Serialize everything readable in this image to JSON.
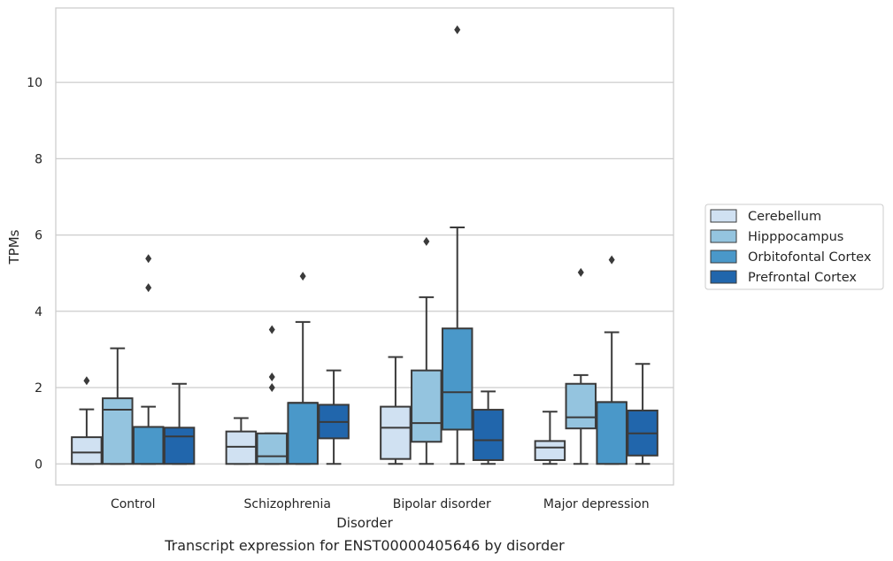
{
  "chart_data": {
    "type": "box",
    "caption": "Transcript expression for ENST00000405646 by disorder",
    "xlabel": "Disorder",
    "ylabel": "TPMs",
    "ylim": [
      -0.55,
      11.95
    ],
    "yticks": [
      0,
      2,
      4,
      6,
      8,
      10
    ],
    "grid": "horizontal",
    "legend_position": "center-right",
    "categories": [
      "Control",
      "Schizophrenia",
      "Bipolar disorder",
      "Major depression"
    ],
    "series": [
      {
        "name": "Cerebellum",
        "color": "#d0e1f2",
        "boxes": [
          {
            "min": 0,
            "q1": 0,
            "median": 0.3,
            "q3": 0.7,
            "max": 1.43,
            "outliers": [
              2.18
            ]
          },
          {
            "min": 0,
            "q1": 0,
            "median": 0.45,
            "q3": 0.85,
            "max": 1.2,
            "outliers": []
          },
          {
            "min": 0,
            "q1": 0.13,
            "median": 0.95,
            "q3": 1.5,
            "max": 2.8,
            "outliers": []
          },
          {
            "min": 0,
            "q1": 0.1,
            "median": 0.43,
            "q3": 0.6,
            "max": 1.37,
            "outliers": []
          }
        ]
      },
      {
        "name": "Hipppocampus",
        "color": "#94c4df",
        "boxes": [
          {
            "min": 0,
            "q1": 0,
            "median": 1.42,
            "q3": 1.72,
            "max": 3.03,
            "outliers": []
          },
          {
            "min": 0,
            "q1": 0,
            "median": 0.2,
            "q3": 0.8,
            "max": 0.8,
            "outliers": [
              3.52,
              2.28,
              2.0
            ]
          },
          {
            "min": 0,
            "q1": 0.58,
            "median": 1.07,
            "q3": 2.45,
            "max": 4.37,
            "outliers": [
              5.83
            ]
          },
          {
            "min": 0,
            "q1": 0.93,
            "median": 1.22,
            "q3": 2.1,
            "max": 2.33,
            "outliers": [
              5.02
            ]
          }
        ]
      },
      {
        "name": "Orbitofontal Cortex",
        "color": "#4a98c9",
        "boxes": [
          {
            "min": 0,
            "q1": 0,
            "median": 0.97,
            "q3": 0.97,
            "max": 1.5,
            "outliers": [
              5.38,
              4.62
            ]
          },
          {
            "min": 0,
            "q1": 0,
            "median": 1.6,
            "q3": 1.6,
            "max": 3.72,
            "outliers": [
              4.92
            ]
          },
          {
            "min": 0,
            "q1": 0.9,
            "median": 1.88,
            "q3": 3.55,
            "max": 6.2,
            "outliers": [
              11.38
            ]
          },
          {
            "min": 0,
            "q1": 0,
            "median": 1.62,
            "q3": 1.62,
            "max": 3.45,
            "outliers": [
              5.35
            ]
          }
        ]
      },
      {
        "name": "Prefrontal Cortex",
        "color": "#2166ac",
        "boxes": [
          {
            "min": 0,
            "q1": 0,
            "median": 0.72,
            "q3": 0.95,
            "max": 2.1,
            "outliers": []
          },
          {
            "min": 0,
            "q1": 0.67,
            "median": 1.1,
            "q3": 1.55,
            "max": 2.45,
            "outliers": []
          },
          {
            "min": 0,
            "q1": 0.1,
            "median": 0.62,
            "q3": 1.42,
            "max": 1.9,
            "outliers": []
          },
          {
            "min": 0,
            "q1": 0.22,
            "median": 0.8,
            "q3": 1.4,
            "max": 2.62,
            "outliers": []
          }
        ]
      }
    ]
  }
}
